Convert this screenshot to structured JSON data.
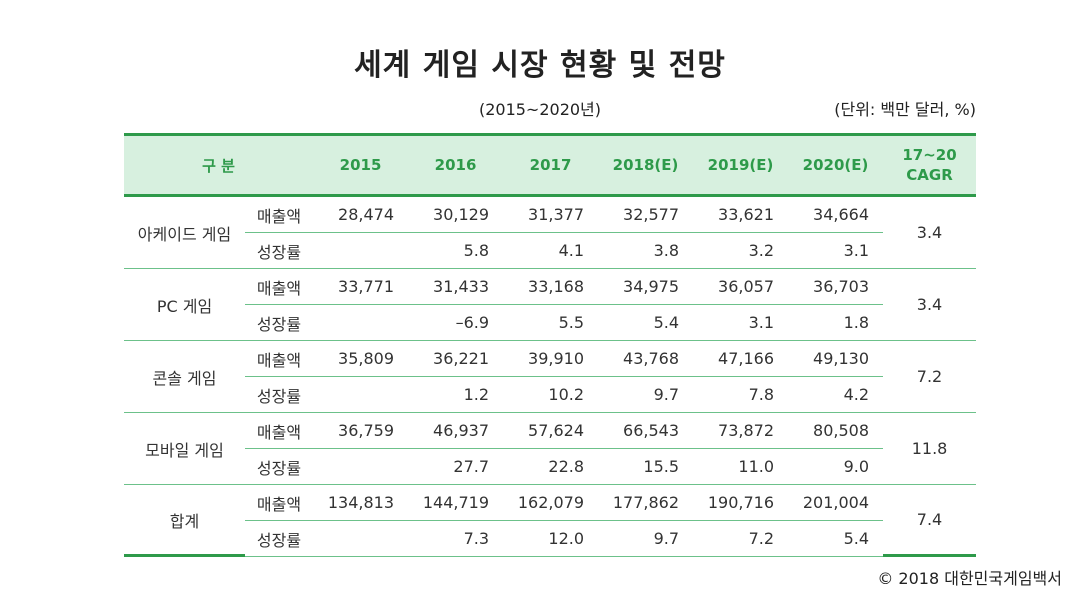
{
  "title": "세계 게임 시장 현황 및 전망",
  "period": "(2015~2020년)",
  "unit": "(단위: 백만 달러, %)",
  "header": {
    "category": "구 분",
    "years": [
      "2015",
      "2016",
      "2017",
      "2018(E)",
      "2019(E)",
      "2020(E)"
    ],
    "cagr_line1": "17~20",
    "cagr_line2": "CAGR"
  },
  "rows": [
    {
      "category": "아케이드 게임",
      "sales_label": "매출액",
      "growth_label": "성장률",
      "sales": [
        "28,474",
        "30,129",
        "31,377",
        "32,577",
        "33,621",
        "34,664"
      ],
      "growth": [
        "",
        "5.8",
        "4.1",
        "3.8",
        "3.2",
        "3.1"
      ],
      "cagr": "3.4"
    },
    {
      "category": "PC 게임",
      "sales_label": "매출액",
      "growth_label": "성장률",
      "sales": [
        "33,771",
        "31,433",
        "33,168",
        "34,975",
        "36,057",
        "36,703"
      ],
      "growth": [
        "",
        "–6.9",
        "5.5",
        "5.4",
        "3.1",
        "1.8"
      ],
      "cagr": "3.4"
    },
    {
      "category": "콘솔 게임",
      "sales_label": "매출액",
      "growth_label": "성장률",
      "sales": [
        "35,809",
        "36,221",
        "39,910",
        "43,768",
        "47,166",
        "49,130"
      ],
      "growth": [
        "",
        "1.2",
        "10.2",
        "9.7",
        "7.8",
        "4.2"
      ],
      "cagr": "7.2"
    },
    {
      "category": "모바일 게임",
      "sales_label": "매출액",
      "growth_label": "성장률",
      "sales": [
        "36,759",
        "46,937",
        "57,624",
        "66,543",
        "73,872",
        "80,508"
      ],
      "growth": [
        "",
        "27.7",
        "22.8",
        "15.5",
        "11.0",
        "9.0"
      ],
      "cagr": "11.8"
    },
    {
      "category": "합계",
      "sales_label": "매출액",
      "growth_label": "성장률",
      "sales": [
        "134,813",
        "144,719",
        "162,079",
        "177,862",
        "190,716",
        "201,004"
      ],
      "growth": [
        "",
        "7.3",
        "12.0",
        "9.7",
        "7.2",
        "5.4"
      ],
      "cagr": "7.4"
    }
  ],
  "source": "© 2018 대한민국게임백서",
  "colors": {
    "accent": "#2e9a4a",
    "header_bg": "#d7f0df",
    "line": "#6cc18a"
  }
}
